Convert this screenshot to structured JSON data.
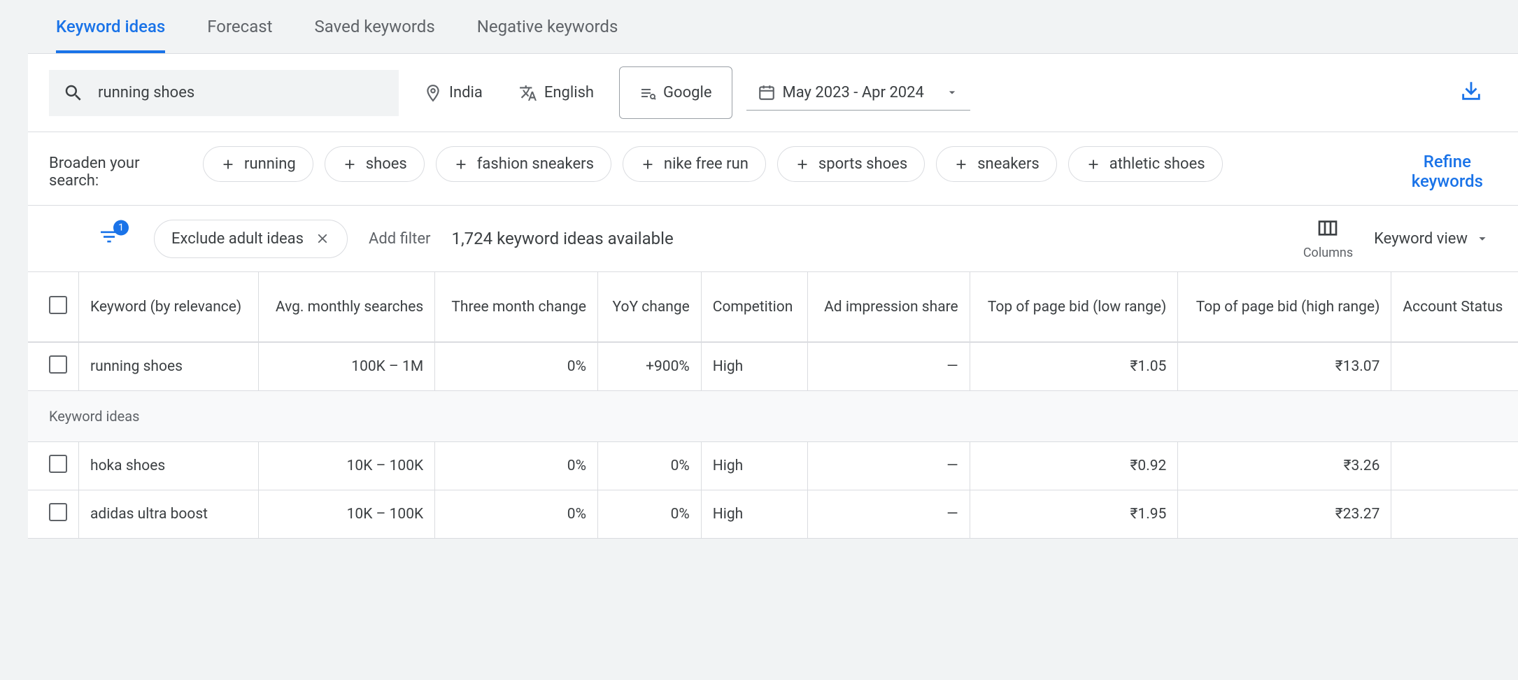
{
  "tabs": {
    "keyword_ideas": "Keyword ideas",
    "forecast": "Forecast",
    "saved_keywords": "Saved keywords",
    "negative_keywords": "Negative keywords"
  },
  "search": {
    "query": "running shoes",
    "location": "India",
    "language": "English",
    "network": "Google",
    "date_range": "May 2023 - Apr 2024"
  },
  "broaden": {
    "label": "Broaden your search:",
    "chips": [
      "running",
      "shoes",
      "fashion sneakers",
      "nike free run",
      "sports shoes",
      "sneakers",
      "athletic shoes"
    ]
  },
  "refine_label": "Refine keywords",
  "filters": {
    "badge": "1",
    "exclude_adult": "Exclude adult ideas",
    "add_filter": "Add filter",
    "ideas_count": "1,724 keyword ideas available",
    "columns_label": "Columns",
    "view_label": "Keyword view"
  },
  "table": {
    "headers": {
      "keyword": "Keyword (by relevance)",
      "avg_searches": "Avg. monthly searches",
      "three_month": "Three month change",
      "yoy": "YoY change",
      "competition": "Competition",
      "ad_impression": "Ad impression share",
      "bid_low": "Top of page bid (low range)",
      "bid_high": "Top of page bid (high range)",
      "account_status": "Account Status"
    },
    "section_label": "Keyword ideas",
    "rows": [
      {
        "keyword": "running shoes",
        "avg": "100K – 1M",
        "three_month": "0%",
        "yoy": "+900%",
        "comp": "High",
        "ad": "—",
        "low": "₹1.05",
        "high": "₹13.07",
        "status": ""
      },
      {
        "keyword": "hoka shoes",
        "avg": "10K – 100K",
        "three_month": "0%",
        "yoy": "0%",
        "comp": "High",
        "ad": "—",
        "low": "₹0.92",
        "high": "₹3.26",
        "status": ""
      },
      {
        "keyword": "adidas ultra boost",
        "avg": "10K – 100K",
        "three_month": "0%",
        "yoy": "0%",
        "comp": "High",
        "ad": "—",
        "low": "₹1.95",
        "high": "₹23.27",
        "status": ""
      }
    ]
  },
  "colors": {
    "primary": "#1a73e8",
    "text": "#3c4043",
    "muted": "#5f6368",
    "border": "#dadce0",
    "bg": "#f1f3f4"
  }
}
